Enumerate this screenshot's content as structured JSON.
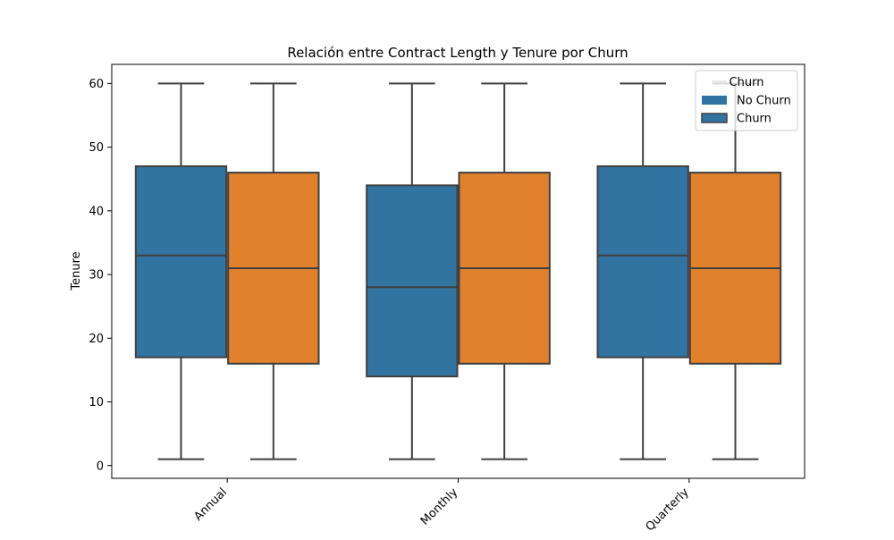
{
  "chart_data": {
    "type": "boxplot",
    "title": "Relación entre Contract Length y Tenure por Churn",
    "xlabel": "",
    "ylabel": "Tenure",
    "ylim": [
      -2,
      63
    ],
    "y_ticks": [
      0,
      10,
      20,
      30,
      40,
      50,
      60
    ],
    "grid": false,
    "categories": [
      "Annual",
      "Monthly",
      "Quarterly"
    ],
    "legend": {
      "title": "Churn",
      "placement": "top-right",
      "entries": [
        "No Churn",
        "Churn"
      ]
    },
    "series": [
      {
        "color": "#3274a1",
        "boxes": [
          {
            "category": "Annual",
            "min": 1,
            "q1": 17,
            "median": 33,
            "q3": 47,
            "max": 60
          },
          {
            "category": "Monthly",
            "min": 1,
            "q1": 14,
            "median": 28,
            "q3": 44,
            "max": 60
          },
          {
            "category": "Quarterly",
            "min": 1,
            "q1": 17,
            "median": 33,
            "q3": 47,
            "max": 60
          }
        ]
      },
      {
        "color": "#e1812c",
        "boxes": [
          {
            "category": "Annual",
            "min": 1,
            "q1": 16,
            "median": 31,
            "q3": 46,
            "max": 60
          },
          {
            "category": "Monthly",
            "min": 1,
            "q1": 16,
            "median": 31,
            "q3": 46,
            "max": 60
          },
          {
            "category": "Quarterly",
            "min": 1,
            "q1": 16,
            "median": 31,
            "q3": 46,
            "max": 60
          }
        ]
      }
    ],
    "legend_swatch_color": "#3274a1",
    "line_color": "#3f3f3f"
  }
}
